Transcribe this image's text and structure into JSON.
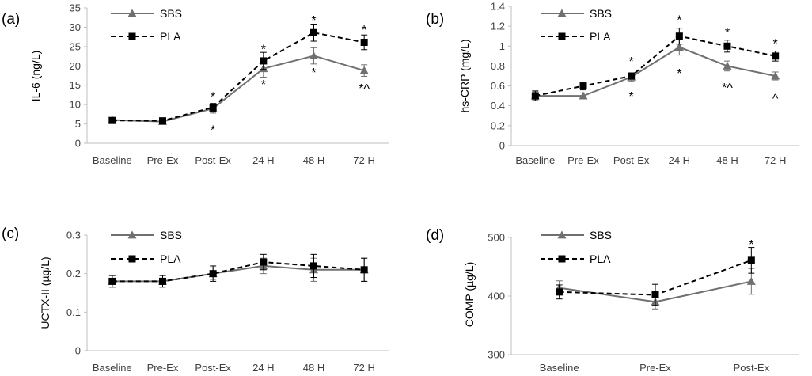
{
  "chart_data": [
    {
      "type": "line",
      "panel": "(a)",
      "ylabel": "IL-6  (ng/L)",
      "categories": [
        "Baseline",
        "Pre-Ex",
        "Post-Ex",
        "24 H",
        "48 H",
        "72 H"
      ],
      "ylim": [
        0,
        35
      ],
      "yticks": [
        0,
        5,
        10,
        15,
        20,
        25,
        30,
        35
      ],
      "ytick_labels": [
        "0",
        "5",
        "10",
        "15",
        "20",
        "25",
        "30",
        "35"
      ],
      "series": [
        {
          "name": "SBS",
          "values": [
            6,
            5.6,
            9,
            19.3,
            22.6,
            18.8
          ],
          "errors": [
            0.6,
            0.6,
            1.2,
            2.2,
            2.1,
            1.5
          ]
        },
        {
          "name": "PLA",
          "values": [
            5.9,
            5.8,
            9.3,
            21.3,
            28.6,
            26.1
          ],
          "errors": [
            0.5,
            0.6,
            1.0,
            2.2,
            2.2,
            1.9
          ]
        }
      ],
      "annotations": [
        {
          "text": "*",
          "category": "Post-Ex",
          "y": 12.2
        },
        {
          "text": "*",
          "category": "Post-Ex",
          "y": 3.6
        },
        {
          "text": "*",
          "category": "24 H",
          "y": 24.5
        },
        {
          "text": "*",
          "category": "24 H",
          "y": 15.3
        },
        {
          "text": "*",
          "category": "48 H",
          "y": 31.9
        },
        {
          "text": "*",
          "category": "48 H",
          "y": 18.4
        },
        {
          "text": "*",
          "category": "72 H",
          "y": 29.5
        },
        {
          "text": "*^",
          "category": "72 H",
          "y": 14.3
        }
      ]
    },
    {
      "type": "line",
      "panel": "(b)",
      "ylabel": "hs-CRP  (mg/L)",
      "categories": [
        "Baseline",
        "Pre-Ex",
        "Post-Ex",
        "24 H",
        "48 H",
        "72 H"
      ],
      "ylim": [
        0,
        1.4
      ],
      "yticks": [
        0,
        0.2,
        0.4,
        0.6,
        0.8,
        1.0,
        1.2,
        1.4
      ],
      "ytick_labels": [
        "0",
        "0.2",
        "0.4",
        "0.6",
        "0.8",
        "1",
        "1.2",
        "1.4"
      ],
      "series": [
        {
          "name": "SBS",
          "values": [
            0.5,
            0.5,
            0.69,
            0.99,
            0.8,
            0.7
          ],
          "errors": [
            0.04,
            0.03,
            0.04,
            0.08,
            0.05,
            0.04
          ]
        },
        {
          "name": "PLA",
          "values": [
            0.5,
            0.6,
            0.7,
            1.1,
            1.0,
            0.9
          ],
          "errors": [
            0.05,
            0.04,
            0.03,
            0.08,
            0.06,
            0.05
          ]
        }
      ],
      "annotations": [
        {
          "text": "*",
          "category": "Post-Ex",
          "y": 0.85
        },
        {
          "text": "*",
          "category": "Post-Ex",
          "y": 0.5
        },
        {
          "text": "*",
          "category": "24 H",
          "y": 1.27
        },
        {
          "text": "*",
          "category": "24 H",
          "y": 0.73
        },
        {
          "text": "*",
          "category": "48 H",
          "y": 1.14
        },
        {
          "text": "*^",
          "category": "48 H",
          "y": 0.59
        },
        {
          "text": "*",
          "category": "72 H",
          "y": 1.03
        },
        {
          "text": "^",
          "category": "72 H",
          "y": 0.48
        }
      ]
    },
    {
      "type": "line",
      "panel": "(c)",
      "ylabel": "UCTX-II (µg/L)",
      "categories": [
        "Baseline",
        "Pre-Ex",
        "Post-Ex",
        "24 H",
        "48 H",
        "72 H"
      ],
      "ylim": [
        0,
        0.3
      ],
      "yticks": [
        0,
        0.1,
        0.2,
        0.3
      ],
      "ytick_labels": [
        "0",
        "0.1",
        "0.2",
        "0.3"
      ],
      "series": [
        {
          "name": "SBS",
          "values": [
            0.18,
            0.18,
            0.2,
            0.22,
            0.21,
            0.21
          ],
          "errors": [
            0.015,
            0.015,
            0.015,
            0.02,
            0.03,
            0.03
          ]
        },
        {
          "name": "PLA",
          "values": [
            0.18,
            0.18,
            0.2,
            0.23,
            0.22,
            0.21
          ],
          "errors": [
            0.015,
            0.015,
            0.02,
            0.02,
            0.03,
            0.03
          ]
        }
      ],
      "annotations": []
    },
    {
      "type": "line",
      "panel": "(d)",
      "ylabel": "COMP (µg/L)",
      "categories": [
        "Baseline",
        "Pre-Ex",
        "Post-Ex"
      ],
      "ylim": [
        300,
        500
      ],
      "yticks": [
        300,
        400,
        500
      ],
      "ytick_labels": [
        "300",
        "400",
        "500"
      ],
      "series": [
        {
          "name": "SBS",
          "values": [
            414,
            390,
            425
          ],
          "errors": [
            12,
            12,
            22
          ]
        },
        {
          "name": "PLA",
          "values": [
            407,
            402,
            461
          ],
          "errors": [
            12,
            18,
            22
          ]
        }
      ],
      "annotations": [
        {
          "text": "*",
          "category": "Post-Ex",
          "y": 489
        }
      ]
    }
  ],
  "legend": {
    "sbs_label": "SBS",
    "pla_label": "PLA"
  },
  "colors": {
    "sbs": "#707070",
    "pla": "#000000",
    "axis": "#bfbfbf",
    "tick_text": "#404040"
  }
}
